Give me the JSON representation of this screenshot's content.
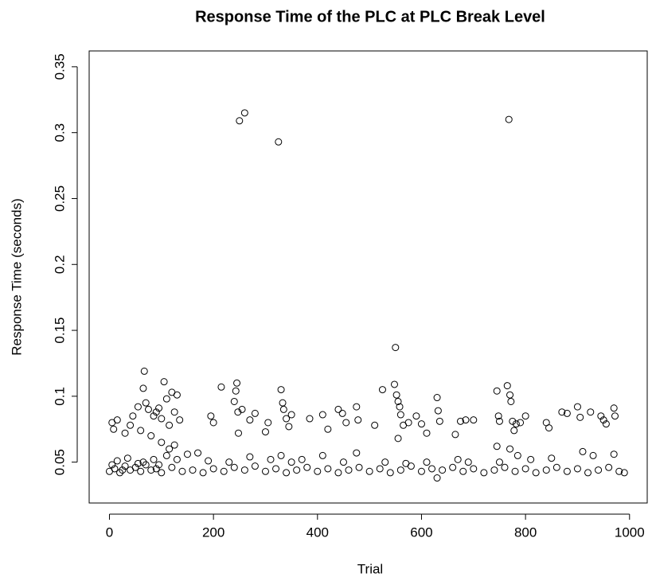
{
  "chart_data": {
    "type": "scatter",
    "title": "Response Time of the PLC at PLC Break Level",
    "x_label": "Trial",
    "y_label": "Response Time (seconds)",
    "color": "#000000",
    "xlim": [
      -39,
      1034
    ],
    "ylim": [
      0.019,
      0.362
    ],
    "xticks": [
      0,
      200,
      400,
      600,
      800,
      1000
    ],
    "yticks": [
      0.05,
      0.1,
      0.15,
      0.2,
      0.25,
      0.3,
      0.35
    ],
    "x": [
      0,
      10,
      20,
      30,
      40,
      50,
      60,
      70,
      80,
      90,
      100,
      120,
      140,
      160,
      180,
      200,
      220,
      240,
      260,
      280,
      300,
      320,
      340,
      360,
      380,
      400,
      420,
      440,
      460,
      480,
      500,
      520,
      540,
      560,
      580,
      600,
      620,
      630,
      640,
      660,
      680,
      700,
      720,
      740,
      760,
      780,
      800,
      820,
      840,
      860,
      880,
      900,
      920,
      940,
      960,
      980,
      990,
      5,
      15,
      25,
      35,
      55,
      65,
      85,
      95,
      110,
      130,
      150,
      170,
      190,
      230,
      270,
      310,
      330,
      350,
      370,
      410,
      450,
      475,
      530,
      570,
      610,
      670,
      690,
      750,
      785,
      810,
      850,
      910,
      930,
      970,
      5,
      8,
      15,
      30,
      40,
      45,
      55,
      60,
      65,
      67,
      70,
      75,
      80,
      85,
      90,
      95,
      100,
      105,
      110,
      115,
      120,
      125,
      130,
      135,
      100,
      115,
      125,
      195,
      200,
      215,
      240,
      243,
      245,
      247,
      250,
      260,
      255,
      248,
      270,
      280,
      305,
      325,
      330,
      333,
      335,
      340,
      345,
      350,
      300,
      385,
      410,
      420,
      440,
      448,
      455,
      475,
      478,
      510,
      525,
      548,
      550,
      552,
      555,
      558,
      560,
      555,
      565,
      575,
      590,
      600,
      610,
      630,
      632,
      635,
      665,
      675,
      685,
      700,
      745,
      748,
      750,
      745,
      765,
      768,
      770,
      772,
      775,
      778,
      782,
      790,
      800,
      770,
      840,
      845,
      870,
      880,
      900,
      905,
      925,
      945,
      950,
      955,
      970,
      972
    ],
    "values": [
      0.043,
      0.045,
      0.042,
      0.047,
      0.044,
      0.046,
      0.043,
      0.048,
      0.044,
      0.045,
      0.042,
      0.046,
      0.043,
      0.044,
      0.042,
      0.045,
      0.043,
      0.046,
      0.044,
      0.047,
      0.043,
      0.045,
      0.042,
      0.044,
      0.046,
      0.043,
      0.045,
      0.042,
      0.044,
      0.046,
      0.043,
      0.045,
      0.042,
      0.044,
      0.047,
      0.043,
      0.045,
      0.038,
      0.044,
      0.046,
      0.043,
      0.045,
      0.042,
      0.044,
      0.046,
      0.043,
      0.045,
      0.042,
      0.044,
      0.046,
      0.043,
      0.045,
      0.042,
      0.044,
      0.046,
      0.043,
      0.042,
      0.048,
      0.051,
      0.044,
      0.053,
      0.049,
      0.05,
      0.052,
      0.048,
      0.055,
      0.052,
      0.056,
      0.057,
      0.051,
      0.05,
      0.054,
      0.052,
      0.055,
      0.05,
      0.052,
      0.055,
      0.05,
      0.057,
      0.05,
      0.049,
      0.05,
      0.052,
      0.05,
      0.05,
      0.055,
      0.052,
      0.053,
      0.058,
      0.055,
      0.056,
      0.08,
      0.075,
      0.082,
      0.072,
      0.078,
      0.085,
      0.092,
      0.074,
      0.106,
      0.119,
      0.095,
      0.09,
      0.07,
      0.085,
      0.088,
      0.091,
      0.083,
      0.111,
      0.098,
      0.078,
      0.103,
      0.088,
      0.101,
      0.082,
      0.065,
      0.06,
      0.063,
      0.085,
      0.08,
      0.107,
      0.096,
      0.104,
      0.11,
      0.088,
      0.309,
      0.315,
      0.09,
      0.072,
      0.082,
      0.087,
      0.08,
      0.293,
      0.105,
      0.095,
      0.09,
      0.083,
      0.077,
      0.086,
      0.073,
      0.083,
      0.086,
      0.075,
      0.09,
      0.087,
      0.08,
      0.092,
      0.082,
      0.078,
      0.105,
      0.109,
      0.137,
      0.101,
      0.096,
      0.092,
      0.086,
      0.068,
      0.078,
      0.08,
      0.085,
      0.079,
      0.072,
      0.099,
      0.089,
      0.081,
      0.071,
      0.081,
      0.082,
      0.082,
      0.104,
      0.085,
      0.081,
      0.062,
      0.108,
      0.31,
      0.101,
      0.096,
      0.081,
      0.074,
      0.079,
      0.08,
      0.085,
      0.06,
      0.08,
      0.076,
      0.088,
      0.087,
      0.092,
      0.084,
      0.088,
      0.085,
      0.082,
      0.079,
      0.091,
      0.085
    ]
  }
}
